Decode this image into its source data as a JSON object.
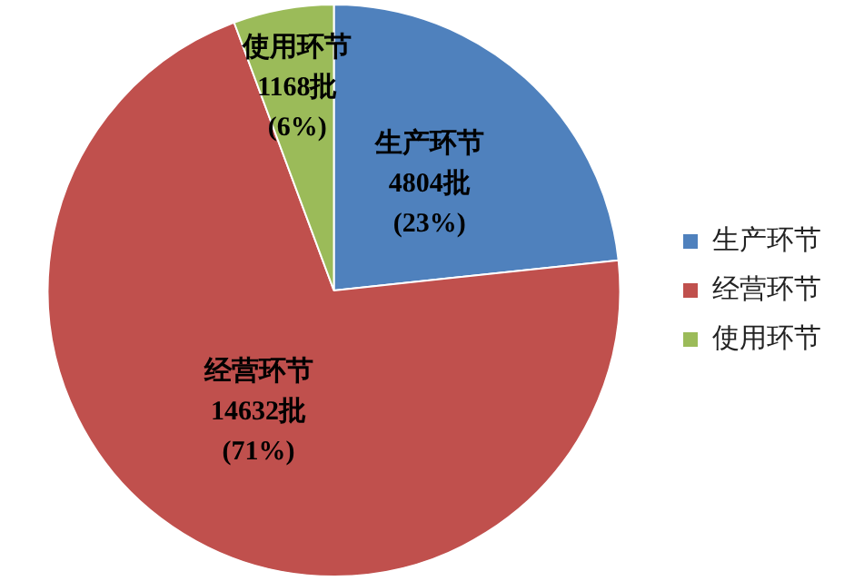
{
  "chart_data": {
    "type": "pie",
    "categories": [
      "生产环节",
      "经营环节",
      "使用环节"
    ],
    "values": [
      4804,
      14632,
      1168
    ],
    "colors": [
      "#4f81bd",
      "#c0504d",
      "#9bbb59"
    ],
    "value_labels": [
      "4804批\n(23%)",
      "14632批\n(71%)",
      "1168批\n(6%)"
    ],
    "legend": "right"
  }
}
